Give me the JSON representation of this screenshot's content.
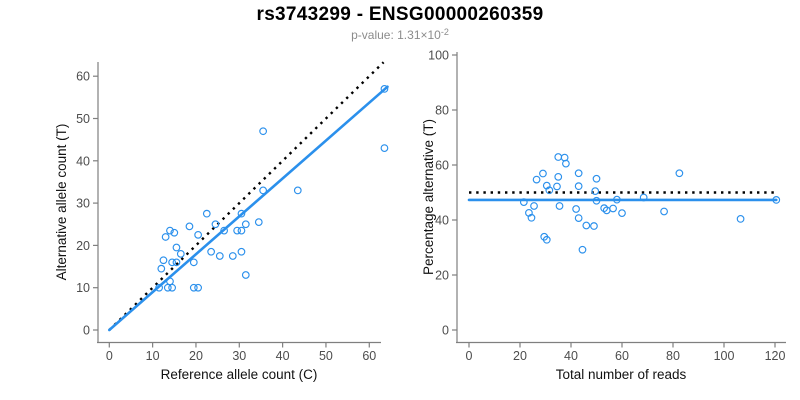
{
  "header": {
    "title": "rs3743299 - ENSG00000260359",
    "p_value_base": "p-value: 1.31×10",
    "p_value_exponent": "-2"
  },
  "colors": {
    "points": "#2b90ec",
    "fit_line": "#2b90ec",
    "reference_line": "#000000",
    "axis": "#7f7f7f",
    "tick_label": "#4d4d4d",
    "axis_label": "#111111",
    "title": "#000000",
    "subtitle": "#8c8c8c",
    "background": "#ffffff"
  },
  "chart_data": [
    {
      "type": "scatter",
      "title": "",
      "xlabel": "Reference allele count (C)",
      "ylabel": "Alternative allele count (T)",
      "xlim": [
        0,
        65
      ],
      "ylim": [
        0,
        63
      ],
      "xticks": [
        0,
        10,
        20,
        30,
        40,
        50,
        60
      ],
      "yticks": [
        0,
        10,
        20,
        30,
        40,
        50,
        60
      ],
      "grid": false,
      "legend": "none",
      "marker": "open-circle",
      "points": [
        [
          11.5,
          10
        ],
        [
          13.5,
          10
        ],
        [
          14.5,
          10
        ],
        [
          14,
          11.5
        ],
        [
          12,
          14.5
        ],
        [
          12.5,
          16.5
        ],
        [
          14.5,
          16
        ],
        [
          15.5,
          16
        ],
        [
          13,
          22
        ],
        [
          14,
          23.5
        ],
        [
          15,
          23
        ],
        [
          15.5,
          19.5
        ],
        [
          16.5,
          18
        ],
        [
          18.5,
          24.5
        ],
        [
          19.5,
          16
        ],
        [
          19.5,
          10
        ],
        [
          20.5,
          10
        ],
        [
          20.5,
          22.5
        ],
        [
          22.5,
          27.5
        ],
        [
          23.5,
          18.5
        ],
        [
          24.5,
          25
        ],
        [
          25.5,
          17.5
        ],
        [
          26.5,
          23.5
        ],
        [
          28.5,
          17.5
        ],
        [
          29.5,
          23.5
        ],
        [
          30.5,
          23.5
        ],
        [
          30.5,
          27.5
        ],
        [
          30.5,
          18.5
        ],
        [
          31.5,
          25
        ],
        [
          31.5,
          13
        ],
        [
          34.5,
          25.5
        ],
        [
          35.5,
          33
        ],
        [
          35.5,
          47
        ],
        [
          43.5,
          33
        ],
        [
          63.5,
          57
        ],
        [
          63.5,
          43
        ]
      ],
      "lines": [
        {
          "name": "identity-line",
          "style": "dotted",
          "color": "#000000",
          "x1": 0,
          "y1": 0,
          "x2": 63.3,
          "y2": 63.3
        },
        {
          "name": "fit-line",
          "style": "solid",
          "color": "#2b90ec",
          "x1": 0,
          "y1": 0,
          "x2": 64.2,
          "y2": 57.5
        }
      ]
    },
    {
      "type": "scatter",
      "title": "",
      "xlabel": "Total number of reads",
      "ylabel": "Percentage alternative (T)",
      "xlim": [
        0,
        124
      ],
      "ylim": [
        0,
        100
      ],
      "xticks": [
        0,
        20,
        40,
        60,
        80,
        100,
        120
      ],
      "yticks": [
        0,
        20,
        40,
        60,
        80,
        100
      ],
      "grid": false,
      "legend": "none",
      "marker": "open-circle",
      "points": [
        [
          21.5,
          46.5
        ],
        [
          23.5,
          42.6
        ],
        [
          24.5,
          40.8
        ],
        [
          25.5,
          45.1
        ],
        [
          26.5,
          54.7
        ],
        [
          29,
          56.9
        ],
        [
          30.5,
          52.5
        ],
        [
          31.5,
          50.8
        ],
        [
          35,
          62.9
        ],
        [
          37.5,
          62.7
        ],
        [
          38,
          60.5
        ],
        [
          35,
          55.7
        ],
        [
          34.5,
          52.2
        ],
        [
          43,
          57
        ],
        [
          35.5,
          45.1
        ],
        [
          29.5,
          33.9
        ],
        [
          30.5,
          32.8
        ],
        [
          43,
          52.3
        ],
        [
          50,
          55
        ],
        [
          42,
          44
        ],
        [
          49.5,
          50.5
        ],
        [
          43,
          40.7
        ],
        [
          50,
          47
        ],
        [
          46,
          38
        ],
        [
          53,
          44.3
        ],
        [
          54,
          43.5
        ],
        [
          58,
          47.4
        ],
        [
          49,
          37.8
        ],
        [
          56.5,
          44.2
        ],
        [
          44.5,
          29.2
        ],
        [
          60,
          42.5
        ],
        [
          68.5,
          48.2
        ],
        [
          82.5,
          57
        ],
        [
          76.5,
          43.1
        ],
        [
          120.5,
          47.3
        ],
        [
          106.5,
          40.4
        ]
      ],
      "lines": [
        {
          "name": "expected-50-line",
          "style": "dotted",
          "color": "#000000",
          "x1": 0,
          "y1": 50,
          "x2": 120.5,
          "y2": 50
        },
        {
          "name": "fit-line",
          "style": "solid",
          "color": "#2b90ec",
          "x1": 0,
          "y1": 47.3,
          "x2": 120.5,
          "y2": 47.3
        }
      ]
    }
  ]
}
